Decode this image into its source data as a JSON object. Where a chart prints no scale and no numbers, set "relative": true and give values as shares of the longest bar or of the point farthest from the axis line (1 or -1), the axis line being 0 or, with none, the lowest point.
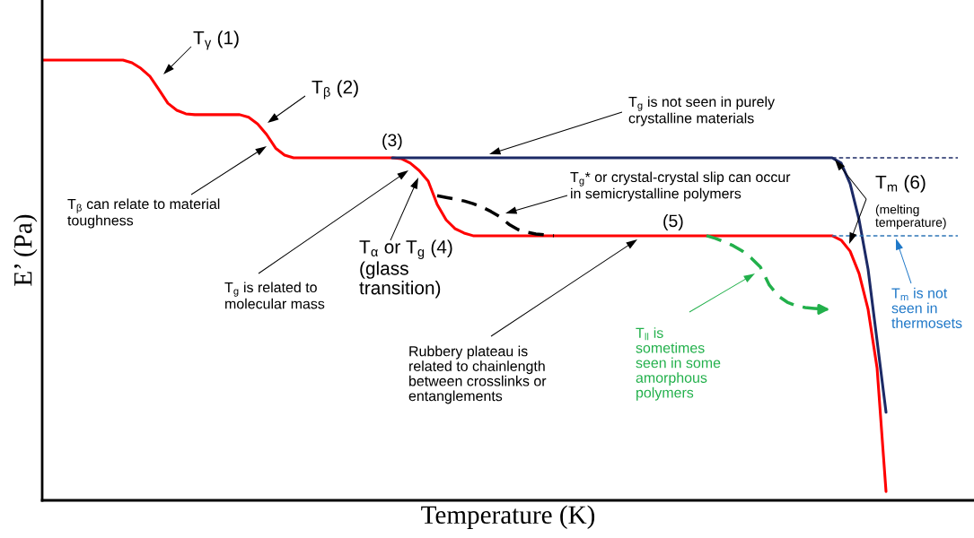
{
  "chart_data": {
    "type": "line",
    "relative": true,
    "xlabel": "Temperature (K)",
    "ylabel": "E’ (Pa)",
    "categories": [
      null,
      null,
      null,
      null,
      null,
      null,
      null,
      null,
      null,
      null,
      null,
      null,
      null,
      null,
      null,
      null,
      null,
      null,
      null,
      null,
      null,
      null,
      null,
      null,
      null,
      null,
      null,
      null,
      null,
      null,
      null,
      null,
      null,
      null,
      null,
      null,
      null,
      null,
      null,
      null,
      null,
      null,
      null,
      null,
      null,
      null,
      null,
      null,
      null,
      null,
      null,
      null,
      null,
      null,
      null,
      null,
      null,
      null,
      null,
      null,
      null,
      null,
      null,
      null,
      null,
      null,
      null,
      null,
      null,
      null,
      null,
      null,
      null,
      null,
      null,
      null,
      null,
      null,
      null,
      null,
      null,
      null,
      null,
      null,
      null,
      null,
      null,
      null,
      null,
      null,
      null,
      null,
      null,
      null,
      null,
      null,
      null,
      null,
      null,
      null,
      null,
      null,
      null
    ],
    "series": [
      {
        "color": "#ff0000",
        "line_style": "solid",
        "values": [
          1.0,
          1.0,
          1.0,
          1.0,
          1.0,
          1.0,
          1.0,
          1.0,
          1.0,
          1.0,
          0.994,
          0.981,
          0.963,
          0.933,
          0.902,
          0.886,
          0.878,
          0.876,
          0.876,
          0.876,
          0.876,
          0.876,
          0.876,
          0.87,
          0.855,
          0.831,
          0.8,
          0.784,
          0.778,
          0.778,
          0.778,
          0.778,
          0.778,
          0.778,
          0.778,
          0.778,
          0.778,
          0.778,
          0.778,
          0.778,
          0.776,
          0.766,
          0.749,
          0.725,
          0.672,
          0.637,
          0.617,
          0.607,
          0.601,
          0.601,
          0.601,
          0.601,
          0.601,
          0.601,
          0.601,
          0.601,
          0.601,
          0.601,
          0.601,
          0.601,
          0.601,
          0.601,
          0.601,
          0.601,
          0.601,
          0.601,
          0.601,
          0.601,
          0.601,
          0.601,
          0.601,
          0.601,
          0.601,
          0.601,
          0.601,
          0.601,
          0.601,
          0.601,
          0.601,
          0.601,
          0.601,
          0.601,
          0.601,
          0.601,
          0.601,
          0.601,
          0.601,
          0.601,
          0.601,
          0.591,
          0.566,
          0.515,
          0.434,
          0.301,
          0.02,
          null,
          null,
          null,
          null,
          null,
          null,
          null,
          null
        ]
      },
      {
        "color": "#1c2a66",
        "line_style": "solid",
        "values": [
          null,
          null,
          null,
          null,
          null,
          null,
          null,
          null,
          null,
          null,
          null,
          null,
          null,
          null,
          null,
          null,
          null,
          null,
          null,
          null,
          null,
          null,
          null,
          null,
          null,
          null,
          null,
          null,
          null,
          null,
          null,
          null,
          null,
          null,
          null,
          null,
          null,
          null,
          null,
          0.778,
          0.778,
          0.778,
          0.778,
          0.778,
          0.778,
          0.778,
          0.778,
          0.778,
          0.778,
          0.778,
          0.778,
          0.778,
          0.778,
          0.778,
          0.778,
          0.778,
          0.778,
          0.778,
          0.778,
          0.778,
          0.778,
          0.778,
          0.778,
          0.778,
          0.778,
          0.778,
          0.778,
          0.778,
          0.778,
          0.778,
          0.778,
          0.778,
          0.778,
          0.778,
          0.778,
          0.778,
          0.778,
          0.778,
          0.778,
          0.778,
          0.778,
          0.778,
          0.778,
          0.778,
          0.778,
          0.778,
          0.778,
          0.778,
          0.778,
          0.766,
          0.719,
          0.637,
          0.525,
          0.363,
          0.2,
          null,
          null,
          null,
          null,
          null,
          null,
          null,
          null
        ]
      },
      {
        "color": "#000000",
        "line_style": "dashed",
        "values": [
          null,
          null,
          null,
          null,
          null,
          null,
          null,
          null,
          null,
          null,
          null,
          null,
          null,
          null,
          null,
          null,
          null,
          null,
          null,
          null,
          null,
          null,
          null,
          null,
          null,
          null,
          null,
          null,
          null,
          null,
          null,
          null,
          null,
          null,
          null,
          null,
          null,
          null,
          null,
          null,
          null,
          null,
          null,
          null,
          0.692,
          0.688,
          0.684,
          0.68,
          0.674,
          0.666,
          0.656,
          0.644,
          0.627,
          0.615,
          0.609,
          0.605,
          0.603,
          0.601,
          null,
          null,
          null,
          null,
          null,
          null,
          null,
          null,
          null,
          null,
          null,
          null,
          null,
          null,
          null,
          null,
          null,
          null,
          null,
          null,
          null,
          null,
          null,
          null,
          null,
          null,
          null,
          null,
          null,
          null,
          null,
          null,
          null,
          null,
          null,
          null,
          null,
          null,
          null,
          null,
          null,
          null,
          null,
          null,
          null
        ]
      },
      {
        "color": "#22b04b",
        "line_style": "dashed",
        "values": [
          null,
          null,
          null,
          null,
          null,
          null,
          null,
          null,
          null,
          null,
          null,
          null,
          null,
          null,
          null,
          null,
          null,
          null,
          null,
          null,
          null,
          null,
          null,
          null,
          null,
          null,
          null,
          null,
          null,
          null,
          null,
          null,
          null,
          null,
          null,
          null,
          null,
          null,
          null,
          null,
          null,
          null,
          null,
          null,
          null,
          null,
          null,
          null,
          null,
          null,
          null,
          null,
          null,
          null,
          null,
          null,
          null,
          null,
          null,
          null,
          null,
          null,
          null,
          null,
          null,
          null,
          null,
          null,
          null,
          null,
          null,
          null,
          null,
          null,
          0.601,
          0.595,
          0.587,
          0.578,
          0.566,
          0.55,
          0.53,
          0.489,
          0.464,
          0.45,
          0.442,
          0.438,
          0.436,
          0.434,
          null,
          null,
          null,
          null,
          null,
          null,
          null,
          null,
          null,
          null,
          null,
          null,
          null,
          null,
          null
        ]
      },
      {
        "color": "#1c2a66",
        "line_style": "dashed",
        "values": [
          null,
          null,
          null,
          null,
          null,
          null,
          null,
          null,
          null,
          null,
          null,
          null,
          null,
          null,
          null,
          null,
          null,
          null,
          null,
          null,
          null,
          null,
          null,
          null,
          null,
          null,
          null,
          null,
          null,
          null,
          null,
          null,
          null,
          null,
          null,
          null,
          null,
          null,
          null,
          null,
          null,
          null,
          null,
          null,
          null,
          null,
          null,
          null,
          null,
          null,
          null,
          null,
          null,
          null,
          null,
          null,
          null,
          null,
          null,
          null,
          null,
          null,
          null,
          null,
          null,
          null,
          null,
          null,
          null,
          null,
          null,
          null,
          null,
          null,
          null,
          null,
          null,
          null,
          null,
          null,
          null,
          null,
          null,
          null,
          null,
          null,
          null,
          null,
          0.778,
          0.778,
          0.778,
          0.778,
          0.778,
          0.778,
          0.778,
          0.778,
          0.778,
          0.778,
          0.778,
          0.778,
          0.778,
          0.778,
          0.778
        ]
      },
      {
        "color": "#2e75b6",
        "line_style": "dashed",
        "values": [
          null,
          null,
          null,
          null,
          null,
          null,
          null,
          null,
          null,
          null,
          null,
          null,
          null,
          null,
          null,
          null,
          null,
          null,
          null,
          null,
          null,
          null,
          null,
          null,
          null,
          null,
          null,
          null,
          null,
          null,
          null,
          null,
          null,
          null,
          null,
          null,
          null,
          null,
          null,
          null,
          null,
          null,
          null,
          null,
          null,
          null,
          null,
          null,
          null,
          null,
          null,
          null,
          null,
          null,
          null,
          null,
          null,
          null,
          null,
          null,
          null,
          null,
          null,
          null,
          null,
          null,
          null,
          null,
          null,
          null,
          null,
          null,
          null,
          null,
          null,
          null,
          null,
          null,
          null,
          null,
          null,
          null,
          null,
          null,
          null,
          null,
          null,
          null,
          0.601,
          0.601,
          0.601,
          0.601,
          0.601,
          0.601,
          0.601,
          0.601,
          0.601,
          0.601,
          0.601,
          0.601,
          0.601,
          0.601,
          0.601
        ]
      }
    ],
    "annotations": [
      "T$_{γ}$ (1)",
      "T$_{β}$ (2)",
      "T$_{β}$ can relate to material\ntoughness",
      "(3)",
      "T$_{g}$ is not seen in purely\ncrystalline materials",
      "T$_{g}$* or crystal-crystal slip can occur\nin semicrystalline polymers",
      "T$_{α}$ or T$_{g}$ (4)\n(glass\ntransition)",
      "T$_{g}$ is related to\nmolecular mass",
      "(5)",
      "Rubbery plateau is\nrelated to chainlength\nbetween crosslinks or\nentanglements",
      "T$_{ll}$ is\nsometimes\nseen in some\namorphous\npolymers",
      "T$_{m}$ (6)",
      "(melting\ntemperature)",
      "T$_{m}$ is not\nseen in\nthermosets"
    ]
  }
}
